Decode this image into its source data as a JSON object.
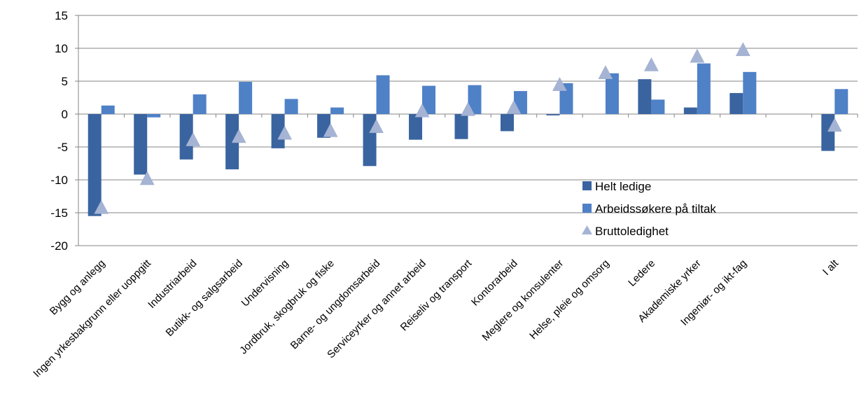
{
  "chart_data": {
    "type": "bar",
    "categories": [
      "Bygg og anlegg",
      "Ingen yrkesbakgrunn eller uoppgitt",
      "Industriarbeid",
      "Butikk- og salgsarbeid",
      "Undervisning",
      "Jordbruk, skogbruk og fiske",
      "Barne- og ungdomsarbeid",
      "Serviceyrker og annet arbeid",
      "Reiseliv og transport",
      "Kontorarbeid",
      "Meglere og konsulenter",
      "Helse, pleie og omsorg",
      "Ledere",
      "Akademiske yrker",
      "Ingeniør- og ikt-fag",
      "",
      "I alt"
    ],
    "series": [
      {
        "name": "Helt ledige",
        "kind": "bar",
        "color": "#3A64A0",
        "values": [
          -15.5,
          -9.2,
          -6.9,
          -8.4,
          -5.2,
          -3.6,
          -7.9,
          -3.9,
          -3.8,
          -2.6,
          -0.2,
          0,
          5.3,
          1.0,
          3.2,
          null,
          -5.6
        ]
      },
      {
        "name": "Arbeidssøkere på tiltak",
        "kind": "bar",
        "color": "#4F81C7",
        "values": [
          1.3,
          -0.5,
          3.0,
          4.9,
          2.3,
          1.0,
          5.9,
          4.3,
          4.4,
          3.5,
          4.7,
          6.2,
          2.2,
          7.7,
          6.4,
          null,
          3.8
        ]
      },
      {
        "name": "Bruttoledighet",
        "kind": "marker",
        "marker": "triangle",
        "color": "#A5B4D4",
        "values": [
          -14.3,
          -9.9,
          -4.0,
          -3.5,
          -3.0,
          -2.6,
          -2.0,
          0.4,
          0.6,
          0.9,
          4.4,
          6.2,
          7.4,
          8.7,
          9.7,
          null,
          -1.8
        ]
      }
    ],
    "ylim": [
      -20,
      15
    ],
    "yticks": [
      15,
      10,
      5,
      0,
      -5,
      -10,
      -15,
      -20
    ],
    "grid": true,
    "legend_position": "inside-right"
  }
}
